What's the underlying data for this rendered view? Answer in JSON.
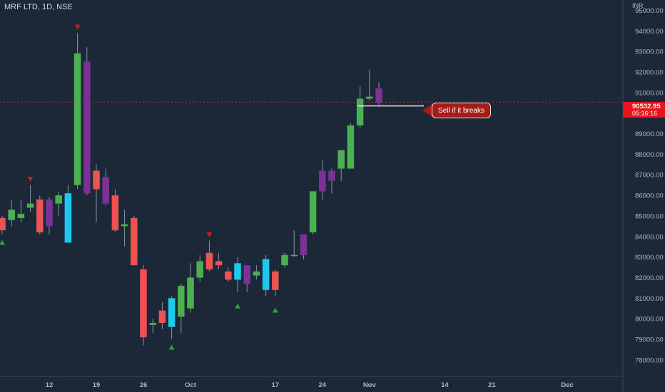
{
  "title": "MRF LTD, 1D, NSE",
  "currency": "INR",
  "annotation": "Sell if it breaks",
  "price_badge": {
    "price": "90532.95",
    "countdown": "05:16:16"
  },
  "colors": {
    "background": "#1b2838",
    "bull": "#4caf50",
    "bear": "#ef5350",
    "cyan": "#1ec8f0",
    "purple": "#7b3196",
    "wick": "#8a94a1",
    "marker": "#2e9e3f",
    "marker_down": "#c21f1f",
    "level_line": "#e6e6e6",
    "current_price_line": "#c8202a"
  },
  "chart_data": {
    "type": "candlestick",
    "title": "MRF LTD, 1D, NSE",
    "y_unit": "INR",
    "ylim": [
      77200,
      95500
    ],
    "y_ticks": [
      "95000.00",
      "94000.00",
      "93000.00",
      "92000.00",
      "91000.00",
      "90000.00",
      "89000.00",
      "88000.00",
      "87000.00",
      "86000.00",
      "85000.00",
      "84000.00",
      "83000.00",
      "82000.00",
      "81000.00",
      "80000.00",
      "79000.00",
      "78000.00"
    ],
    "x_ticks": [
      {
        "label": "12",
        "i": 5
      },
      {
        "label": "19",
        "i": 10
      },
      {
        "label": "26",
        "i": 15
      },
      {
        "label": "Oct",
        "i": 20
      },
      {
        "label": "17",
        "i": 29
      },
      {
        "label": "24",
        "i": 34
      },
      {
        "label": "Nov",
        "i": 39
      },
      {
        "label": "14",
        "i": 47
      },
      {
        "label": "21",
        "i": 52
      },
      {
        "label": "Dec",
        "i": 60
      }
    ],
    "candles": [
      {
        "i": 0,
        "o": 84900,
        "h": 85000,
        "l": 84100,
        "c": 84300,
        "color": "bear"
      },
      {
        "i": 1,
        "o": 84800,
        "h": 85800,
        "l": 84500,
        "c": 85300,
        "color": "bull"
      },
      {
        "i": 2,
        "o": 84900,
        "h": 85800,
        "l": 84700,
        "c": 85100,
        "color": "bull"
      },
      {
        "i": 3,
        "o": 85400,
        "h": 86500,
        "l": 85200,
        "c": 85600,
        "color": "bull"
      },
      {
        "i": 4,
        "o": 85800,
        "h": 86000,
        "l": 84100,
        "c": 84200,
        "color": "bear"
      },
      {
        "i": 5,
        "o": 84500,
        "h": 85900,
        "l": 84100,
        "c": 85800,
        "color": "purple"
      },
      {
        "i": 6,
        "o": 85600,
        "h": 86200,
        "l": 85000,
        "c": 86000,
        "color": "bull"
      },
      {
        "i": 7,
        "o": 86100,
        "h": 86500,
        "l": 83700,
        "c": 83700,
        "color": "cyan"
      },
      {
        "i": 8,
        "o": 86500,
        "h": 93900,
        "l": 86300,
        "c": 92900,
        "color": "bull"
      },
      {
        "i": 9,
        "o": 92500,
        "h": 93200,
        "l": 86000,
        "c": 86100,
        "color": "purple"
      },
      {
        "i": 10,
        "o": 87200,
        "h": 87500,
        "l": 84700,
        "c": 86300,
        "color": "bear"
      },
      {
        "i": 11,
        "o": 86900,
        "h": 87300,
        "l": 85500,
        "c": 85600,
        "color": "purple"
      },
      {
        "i": 12,
        "o": 86000,
        "h": 86300,
        "l": 84200,
        "c": 84300,
        "color": "bear"
      },
      {
        "i": 13,
        "o": 84600,
        "h": 85300,
        "l": 83500,
        "c": 84500,
        "color": "bull"
      },
      {
        "i": 14,
        "o": 84900,
        "h": 85000,
        "l": 82600,
        "c": 82600,
        "color": "bear"
      },
      {
        "i": 15,
        "o": 82400,
        "h": 82600,
        "l": 78700,
        "c": 79100,
        "color": "bear"
      },
      {
        "i": 16,
        "o": 79700,
        "h": 80000,
        "l": 79300,
        "c": 79800,
        "color": "bull"
      },
      {
        "i": 17,
        "o": 80400,
        "h": 80800,
        "l": 79500,
        "c": 79800,
        "color": "bear"
      },
      {
        "i": 18,
        "o": 79600,
        "h": 81100,
        "l": 79000,
        "c": 81000,
        "color": "cyan"
      },
      {
        "i": 19,
        "o": 80100,
        "h": 81700,
        "l": 79300,
        "c": 81600,
        "color": "bull"
      },
      {
        "i": 20,
        "o": 80500,
        "h": 82700,
        "l": 80300,
        "c": 82000,
        "color": "bull"
      },
      {
        "i": 21,
        "o": 82000,
        "h": 83100,
        "l": 81800,
        "c": 82800,
        "color": "bull"
      },
      {
        "i": 22,
        "o": 82400,
        "h": 83800,
        "l": 82300,
        "c": 83200,
        "color": "bear"
      },
      {
        "i": 23,
        "o": 82800,
        "h": 83200,
        "l": 82400,
        "c": 82600,
        "color": "bear"
      },
      {
        "i": 24,
        "o": 82300,
        "h": 82500,
        "l": 81800,
        "c": 81900,
        "color": "bear"
      },
      {
        "i": 25,
        "o": 81900,
        "h": 83000,
        "l": 81300,
        "c": 82700,
        "color": "cyan"
      },
      {
        "i": 26,
        "o": 81700,
        "h": 82600,
        "l": 81300,
        "c": 82600,
        "color": "purple"
      },
      {
        "i": 27,
        "o": 82100,
        "h": 82600,
        "l": 81900,
        "c": 82300,
        "color": "bull"
      },
      {
        "i": 28,
        "o": 81400,
        "h": 83100,
        "l": 81100,
        "c": 82900,
        "color": "cyan"
      },
      {
        "i": 29,
        "o": 82300,
        "h": 82400,
        "l": 81100,
        "c": 81400,
        "color": "bear"
      },
      {
        "i": 30,
        "o": 82600,
        "h": 83200,
        "l": 82500,
        "c": 83100,
        "color": "bull"
      },
      {
        "i": 31,
        "o": 83100,
        "h": 84300,
        "l": 83000,
        "c": 83100,
        "color": "bull"
      },
      {
        "i": 32,
        "o": 83100,
        "h": 84100,
        "l": 82900,
        "c": 84100,
        "color": "purple"
      },
      {
        "i": 33,
        "o": 84200,
        "h": 86100,
        "l": 84100,
        "c": 86200,
        "color": "bull"
      },
      {
        "i": 34,
        "o": 86200,
        "h": 87700,
        "l": 85800,
        "c": 87200,
        "color": "purple"
      },
      {
        "i": 35,
        "o": 86700,
        "h": 87300,
        "l": 86100,
        "c": 87200,
        "color": "purple"
      },
      {
        "i": 36,
        "o": 87300,
        "h": 88200,
        "l": 86700,
        "c": 88200,
        "color": "bull"
      },
      {
        "i": 37,
        "o": 87300,
        "h": 89500,
        "l": 87300,
        "c": 89400,
        "color": "bull"
      },
      {
        "i": 38,
        "o": 89400,
        "h": 91300,
        "l": 89300,
        "c": 90700,
        "color": "bull"
      },
      {
        "i": 39,
        "o": 90700,
        "h": 92100,
        "l": 90600,
        "c": 90800,
        "color": "bull"
      },
      {
        "i": 40,
        "o": 90500,
        "h": 91500,
        "l": 90400,
        "c": 91200,
        "color": "purple"
      }
    ],
    "current_price": 90532.95,
    "level_line": {
      "price": 90350,
      "from_i": 38,
      "to_i": 41
    },
    "markers": [
      {
        "i": 0,
        "type": "up",
        "price": 83700
      },
      {
        "i": 8,
        "type": "down",
        "price": 94200
      },
      {
        "i": 3,
        "type": "down",
        "price": 86800
      },
      {
        "i": 22,
        "type": "down",
        "price": 84100
      },
      {
        "i": 18,
        "type": "up",
        "price": 78600
      },
      {
        "i": 25,
        "type": "up",
        "price": 80600
      },
      {
        "i": 29,
        "type": "up",
        "price": 80400
      }
    ]
  }
}
